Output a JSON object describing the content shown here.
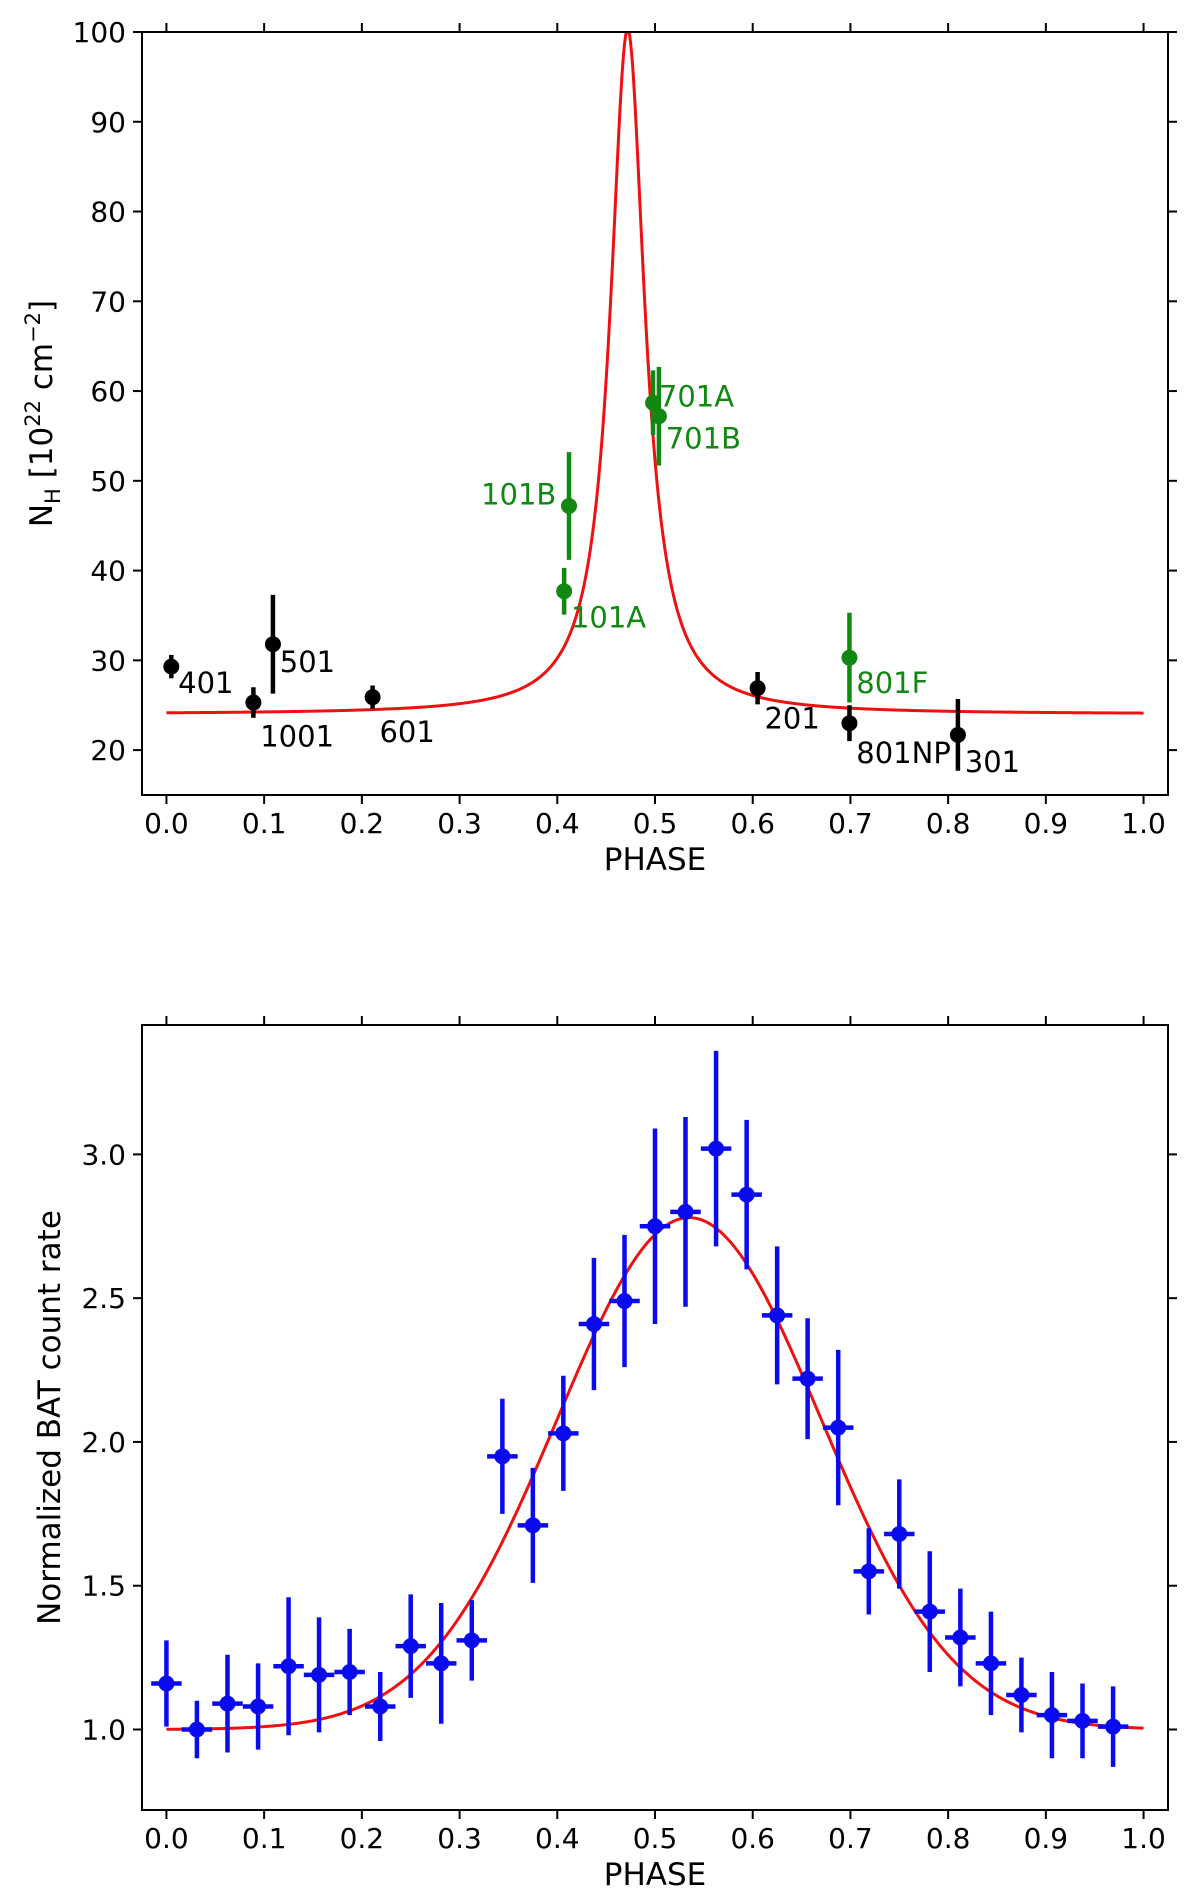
{
  "chart_data": [
    {
      "type": "scatter",
      "xlabel": "PHASE",
      "ylabel": "N",
      "ylabel_sub": "H",
      "ylabel_unit_pre": " [10",
      "ylabel_unit_sup1": "22",
      "ylabel_unit_mid": " cm",
      "ylabel_unit_sup2": "−2",
      "ylabel_unit_post": "]",
      "xlim": [
        -0.025,
        1.025
      ],
      "ylim": [
        15,
        100
      ],
      "xticks": [
        "0.0",
        "0.1",
        "0.2",
        "0.3",
        "0.4",
        "0.5",
        "0.6",
        "0.7",
        "0.8",
        "0.9",
        "1.0"
      ],
      "yticks": [
        "20",
        "30",
        "40",
        "50",
        "60",
        "70",
        "80",
        "90",
        "100"
      ],
      "colors": {
        "black": "#000000",
        "green": "#118811",
        "model": "#ee1111"
      },
      "series": [
        {
          "color": "black",
          "points": [
            {
              "label": "401",
              "x": 0.005,
              "y": 29.3,
              "err": 1.3,
              "lx": 0.012,
              "ly": 27.5
            },
            {
              "label": "1001",
              "x": 0.089,
              "y": 25.3,
              "err": 1.7,
              "lx": 0.096,
              "ly": 21.5
            },
            {
              "label": "501",
              "x": 0.109,
              "y": 31.8,
              "err": 5.5,
              "lx": 0.116,
              "ly": 29.8
            },
            {
              "label": "601",
              "x": 0.211,
              "y": 25.9,
              "err": 1.3,
              "lx": 0.218,
              "ly": 22.0
            },
            {
              "label": "201",
              "x": 0.605,
              "y": 26.9,
              "err": 1.8,
              "lx": 0.612,
              "ly": 23.5
            },
            {
              "label": "801NP",
              "x": 0.699,
              "y": 23.0,
              "err": 2.0,
              "lx": 0.706,
              "ly": 19.7
            },
            {
              "label": "301",
              "x": 0.81,
              "y": 21.7,
              "err": 4.0,
              "lx": 0.817,
              "ly": 18.7
            }
          ]
        },
        {
          "color": "green",
          "points": [
            {
              "label": "101A",
              "x": 0.407,
              "y": 37.7,
              "err": 2.6,
              "lx": 0.414,
              "ly": 34.8
            },
            {
              "label": "101B",
              "x": 0.412,
              "y": 47.2,
              "err": 6.0,
              "lx": 0.322,
              "ly": 48.5
            },
            {
              "label": "701A",
              "x": 0.498,
              "y": 58.7,
              "err": 3.6,
              "lx": 0.504,
              "ly": 59.4
            },
            {
              "label": "701B",
              "x": 0.504,
              "y": 57.2,
              "err": 5.5,
              "lx": 0.511,
              "ly": 54.7
            },
            {
              "label": "801F",
              "x": 0.699,
              "y": 30.3,
              "err": 5.0,
              "lx": 0.706,
              "ly": 27.5
            }
          ]
        }
      ],
      "model": {
        "type": "lorentzian",
        "baseline": 24,
        "amplitude": 76.3,
        "center": 0.472,
        "hwhm": 0.0215
      }
    },
    {
      "type": "scatter",
      "xlabel": "PHASE",
      "ylabel": "Normalized BAT count rate",
      "xlim": [
        -0.025,
        1.025
      ],
      "ylim": [
        0.72,
        3.45
      ],
      "xticks": [
        "0.0",
        "0.1",
        "0.2",
        "0.3",
        "0.4",
        "0.5",
        "0.6",
        "0.7",
        "0.8",
        "0.9",
        "1.0"
      ],
      "yticks": [
        "1.0",
        "1.5",
        "2.0",
        "2.5",
        "3.0"
      ],
      "colors": {
        "data": "#0a0aee",
        "model": "#ee1111"
      },
      "x_bin_halfwidth": 0.0156,
      "x": [
        0.0,
        0.0312,
        0.0625,
        0.0938,
        0.125,
        0.1562,
        0.1875,
        0.2188,
        0.25,
        0.2812,
        0.3125,
        0.3438,
        0.375,
        0.4062,
        0.4375,
        0.4688,
        0.5,
        0.5312,
        0.5625,
        0.5938,
        0.625,
        0.6562,
        0.6875,
        0.7188,
        0.75,
        0.7812,
        0.8125,
        0.8438,
        0.875,
        0.9062,
        0.9375,
        0.9688
      ],
      "y": [
        1.16,
        1.0,
        1.09,
        1.08,
        1.22,
        1.19,
        1.2,
        1.08,
        1.29,
        1.23,
        1.31,
        1.95,
        1.71,
        2.03,
        2.41,
        2.49,
        2.75,
        2.8,
        3.02,
        2.86,
        2.44,
        2.22,
        2.05,
        1.55,
        1.68,
        1.41,
        1.32,
        1.23,
        1.12,
        1.05,
        1.03,
        1.01
      ],
      "yerr": [
        0.15,
        0.1,
        0.17,
        0.15,
        0.24,
        0.2,
        0.15,
        0.12,
        0.18,
        0.21,
        0.14,
        0.2,
        0.2,
        0.2,
        0.23,
        0.23,
        0.34,
        0.33,
        0.34,
        0.26,
        0.24,
        0.21,
        0.27,
        0.15,
        0.19,
        0.21,
        0.17,
        0.18,
        0.13,
        0.15,
        0.13,
        0.14
      ],
      "model": {
        "type": "gaussian",
        "baseline": 1.0,
        "amplitude": 1.78,
        "center": 0.535,
        "sigma": 0.135
      }
    }
  ]
}
